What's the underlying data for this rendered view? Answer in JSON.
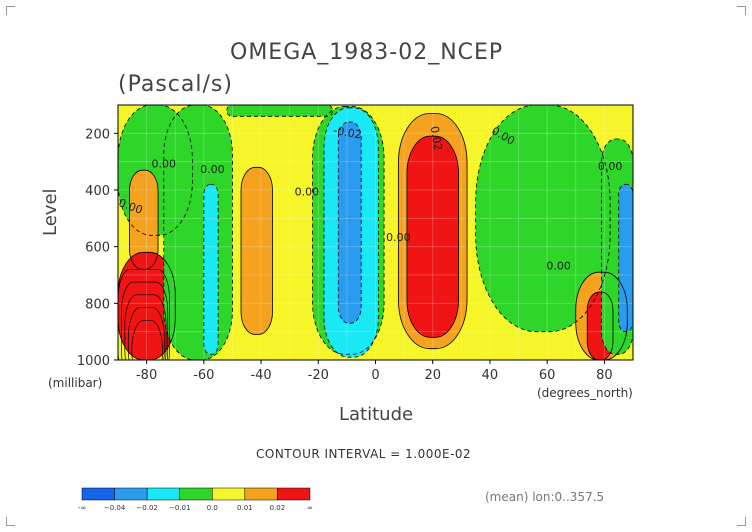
{
  "chart_data": {
    "type": "heatmap",
    "title": "OMEGA_1983-02_NCEP",
    "units": "(Pascal/s)",
    "xlabel": "Latitude",
    "ylabel": "Level",
    "xunit": "(degrees_north)",
    "yunit": "(millibar)",
    "xlim": [
      -90,
      90
    ],
    "ylim": [
      1000,
      100
    ],
    "x_ticks": [
      "-80",
      "-60",
      "-40",
      "-20",
      "0",
      "20",
      "40",
      "60",
      "80"
    ],
    "y_ticks": [
      "200",
      "400",
      "600",
      "800",
      "1000"
    ],
    "contour_interval_text": "CONTOUR INTERVAL = 1.000E-02",
    "mean_text": "(mean) lon:0..357.5",
    "contour_labels": [
      "0.00",
      "0.00",
      "0.00",
      "0.00",
      "-0.02",
      "0.00",
      "0.02",
      "0.00",
      "0.00",
      "0.00"
    ],
    "colorbar": {
      "colors": [
        "#1565e8",
        "#2a9cf0",
        "#19e8f5",
        "#2fd62a",
        "#f5f52a",
        "#f5a21e",
        "#f01414"
      ],
      "labels": [
        "-∞",
        "−0.04",
        "−0.02",
        "−0.01",
        "0.0",
        "0.01",
        "0.02",
        "∞"
      ]
    },
    "regions": [
      {
        "name": "background",
        "value": 0.005,
        "color": "#f5f52a"
      },
      {
        "name": "green-south-upper",
        "lat_range": [
          -90,
          -64
        ],
        "level_range": [
          100,
          560
        ],
        "value": -0.005,
        "color": "#2fd62a"
      },
      {
        "name": "orange-south-mid",
        "lat_range": [
          -86,
          -76
        ],
        "level_range": [
          330,
          680
        ],
        "value": 0.015,
        "color": "#f5a21e"
      },
      {
        "name": "red-south-surface",
        "lat_range": [
          -90,
          -70
        ],
        "level_range": [
          620,
          1000
        ],
        "value": 0.03,
        "color": "#f01414"
      },
      {
        "name": "green-south-band",
        "lat_range": [
          -74,
          -50
        ],
        "level_range": [
          100,
          1000
        ],
        "value": -0.005,
        "color": "#2fd62a"
      },
      {
        "name": "cyan-south",
        "lat_range": [
          -60,
          -55
        ],
        "level_range": [
          380,
          980
        ],
        "value": -0.015,
        "color": "#19e8f5"
      },
      {
        "name": "orange-midlat",
        "lat_range": [
          -47,
          -36
        ],
        "level_range": [
          320,
          910
        ],
        "value": 0.015,
        "color": "#f5a21e"
      },
      {
        "name": "green-upper-midlat",
        "lat_range": [
          -52,
          -15
        ],
        "level_range": [
          100,
          140
        ],
        "value": -0.005,
        "color": "#2fd62a"
      },
      {
        "name": "green-tropics-south",
        "lat_range": [
          -22,
          3
        ],
        "level_range": [
          105,
          980
        ],
        "value": -0.005,
        "color": "#2fd62a"
      },
      {
        "name": "cyan-tropics",
        "lat_range": [
          -18,
          1
        ],
        "level_range": [
          110,
          990
        ],
        "value": -0.015,
        "color": "#19e8f5"
      },
      {
        "name": "blue-tropics",
        "lat_range": [
          -13,
          -5
        ],
        "level_range": [
          160,
          870
        ],
        "value": -0.025,
        "color": "#2a9cf0"
      },
      {
        "name": "orange-north-subtropics",
        "lat_range": [
          8,
          32
        ],
        "level_range": [
          130,
          960
        ],
        "value": 0.015,
        "color": "#f5a21e"
      },
      {
        "name": "red-north-subtropics",
        "lat_range": [
          11,
          29
        ],
        "level_range": [
          210,
          920
        ],
        "value": 0.025,
        "color": "#f01414"
      },
      {
        "name": "green-north-midlat",
        "lat_range": [
          35,
          82
        ],
        "level_range": [
          100,
          900
        ],
        "value": -0.005,
        "color": "#2fd62a"
      },
      {
        "name": "orange-north-high",
        "lat_range": [
          70,
          88
        ],
        "level_range": [
          690,
          1000
        ],
        "value": 0.015,
        "color": "#f5a21e"
      },
      {
        "name": "red-north-high",
        "lat_range": [
          74,
          83
        ],
        "level_range": [
          760,
          1000
        ],
        "value": 0.025,
        "color": "#f01414"
      },
      {
        "name": "green-north-pole",
        "lat_range": [
          79,
          90
        ],
        "level_range": [
          220,
          980
        ],
        "value": -0.005,
        "color": "#2fd62a"
      },
      {
        "name": "blue-north-pole",
        "lat_range": [
          85,
          90
        ],
        "level_range": [
          380,
          900
        ],
        "value": -0.025,
        "color": "#2a9cf0"
      }
    ]
  }
}
